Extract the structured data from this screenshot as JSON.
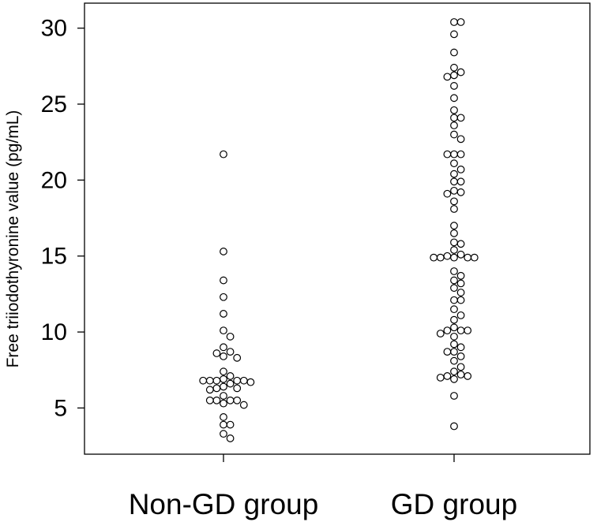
{
  "chart_data": {
    "type": "scatter",
    "ylabel": "Free triiodothyronine value  (pg/mL)",
    "xlabel": "",
    "categories": [
      "Non-GD group",
      "GD group"
    ],
    "ylim": [
      2.0,
      31.8
    ],
    "yticks": [
      5,
      10,
      15,
      20,
      25,
      30
    ],
    "grid": false,
    "legend": "none",
    "series": [
      {
        "category": "Non-GD group",
        "values": [
          21.7,
          15.3,
          13.4,
          12.3,
          11.2,
          10.1,
          9.7,
          9.0,
          8.7,
          8.6,
          8.4,
          8.3,
          7.4,
          7.1,
          6.9,
          6.8,
          6.8,
          6.8,
          6.8,
          6.8,
          6.7,
          6.6,
          6.4,
          6.3,
          6.3,
          6.2,
          5.8,
          5.5,
          5.5,
          5.5,
          5.5,
          5.3,
          5.2,
          4.4,
          3.9,
          3.9,
          3.3,
          3.0
        ]
      },
      {
        "category": "GD group",
        "values": [
          30.4,
          30.4,
          29.6,
          28.4,
          27.4,
          27.1,
          26.9,
          26.8,
          26.2,
          25.4,
          24.6,
          24.1,
          24.1,
          23.6,
          23.0,
          22.7,
          21.7,
          21.7,
          21.7,
          21.1,
          20.7,
          20.4,
          19.9,
          19.9,
          19.3,
          19.2,
          19.1,
          18.6,
          18.1,
          17.0,
          16.5,
          15.9,
          15.8,
          15.4,
          15.1,
          15.0,
          14.9,
          14.9,
          14.9,
          14.9,
          14.9,
          14.0,
          13.7,
          13.4,
          13.2,
          12.9,
          12.6,
          12.1,
          12.1,
          11.5,
          11.1,
          10.8,
          10.3,
          10.1,
          10.1,
          10.1,
          9.9,
          9.7,
          9.2,
          9.0,
          8.7,
          8.7,
          8.4,
          8.1,
          7.7,
          7.4,
          7.2,
          7.1,
          7.1,
          7.0,
          6.9,
          5.8,
          3.8
        ]
      }
    ]
  }
}
